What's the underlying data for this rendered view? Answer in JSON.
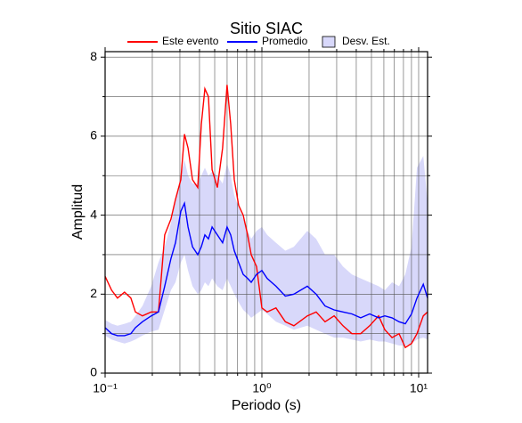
{
  "chart_data": {
    "type": "line",
    "title": "Sitio SIAC",
    "x_label": "Periodo (s)",
    "y_label": "Amplitud",
    "xscale": "log",
    "xlim": [
      0.1,
      11.4
    ],
    "ylim": [
      0,
      8.14
    ],
    "xticks": [
      {
        "value": 0.1,
        "label": "10⁻¹"
      },
      {
        "value": 1,
        "label": "10⁰"
      },
      {
        "value": 10,
        "label": "10¹"
      }
    ],
    "xminor": [
      0.2,
      0.3,
      0.4,
      0.5,
      0.6,
      0.7,
      0.8,
      0.9,
      2,
      3,
      4,
      5,
      6,
      7,
      8,
      9
    ],
    "yticks": [
      0,
      2,
      4,
      6,
      8
    ],
    "yminor": [
      1,
      3,
      5,
      7
    ],
    "grid": true,
    "x": [
      0.1,
      0.11,
      0.12,
      0.133,
      0.146,
      0.156,
      0.173,
      0.197,
      0.219,
      0.24,
      0.263,
      0.281,
      0.304,
      0.321,
      0.338,
      0.361,
      0.39,
      0.411,
      0.433,
      0.456,
      0.481,
      0.52,
      0.562,
      0.6,
      0.633,
      0.667,
      0.711,
      0.76,
      0.811,
      0.855,
      0.925,
      1.0,
      1.08,
      1.23,
      1.41,
      1.6,
      1.95,
      2.22,
      2.53,
      2.89,
      3.29,
      3.75,
      4.27,
      4.87,
      5.55,
      6.08,
      6.76,
      7.5,
      8.22,
      9.01,
      9.75,
      10.7,
      11.4
    ],
    "series": [
      {
        "name": "Este evento",
        "color": "#ff0000",
        "values": [
          2.45,
          2.1,
          1.9,
          2.05,
          1.9,
          1.55,
          1.45,
          1.55,
          1.55,
          3.5,
          3.9,
          4.4,
          4.9,
          6.05,
          5.7,
          4.9,
          4.7,
          6.3,
          7.2,
          7.0,
          5.15,
          4.7,
          5.7,
          7.3,
          6.3,
          4.9,
          4.25,
          4.0,
          3.5,
          3.0,
          2.7,
          1.65,
          1.55,
          1.65,
          1.3,
          1.2,
          1.45,
          1.55,
          1.3,
          1.45,
          1.2,
          1.0,
          1.0,
          1.2,
          1.45,
          1.1,
          0.9,
          1.0,
          0.65,
          0.75,
          1.0,
          1.45,
          1.55
        ]
      },
      {
        "name": "Promedio",
        "color": "#0000ff",
        "values": [
          1.15,
          1.0,
          0.95,
          0.95,
          1.0,
          1.15,
          1.3,
          1.45,
          1.55,
          2.2,
          2.9,
          3.3,
          4.1,
          4.3,
          3.7,
          3.2,
          3.0,
          3.2,
          3.5,
          3.4,
          3.7,
          3.5,
          3.3,
          3.7,
          3.5,
          3.1,
          2.8,
          2.5,
          2.4,
          2.3,
          2.5,
          2.6,
          2.4,
          2.2,
          1.95,
          2.0,
          2.2,
          2.0,
          1.7,
          1.6,
          1.55,
          1.5,
          1.4,
          1.5,
          1.4,
          1.45,
          1.4,
          1.3,
          1.25,
          1.5,
          1.9,
          2.25,
          1.9
        ]
      },
      {
        "name": "Desv. Est.",
        "color": "#d8d8fa",
        "upper": [
          1.35,
          1.25,
          1.2,
          1.25,
          1.3,
          1.45,
          1.7,
          2.2,
          2.8,
          3.2,
          3.8,
          4.4,
          5.0,
          5.4,
          5.0,
          4.8,
          4.8,
          5.0,
          5.2,
          5.0,
          5.1,
          5.0,
          4.8,
          5.3,
          5.0,
          4.5,
          4.2,
          3.9,
          3.6,
          3.4,
          3.6,
          3.7,
          3.5,
          3.3,
          3.1,
          3.2,
          3.6,
          3.4,
          3.0,
          3.0,
          2.7,
          2.5,
          2.4,
          2.3,
          2.2,
          2.1,
          2.3,
          2.2,
          2.5,
          3.2,
          5.2,
          5.5,
          4.3
        ],
        "lower": [
          0.95,
          0.85,
          0.8,
          0.75,
          0.8,
          0.85,
          0.95,
          1.05,
          1.1,
          1.6,
          2.1,
          2.3,
          2.8,
          3.0,
          2.6,
          2.2,
          2.0,
          2.1,
          2.3,
          2.2,
          2.4,
          2.2,
          2.1,
          2.4,
          2.2,
          2.0,
          1.8,
          1.6,
          1.5,
          1.4,
          1.5,
          1.6,
          1.5,
          1.3,
          1.2,
          1.1,
          1.2,
          1.1,
          1.0,
          0.9,
          0.9,
          0.85,
          0.8,
          0.85,
          0.8,
          0.8,
          0.75,
          0.7,
          0.7,
          0.75,
          0.85,
          0.9,
          0.85
        ]
      }
    ]
  }
}
